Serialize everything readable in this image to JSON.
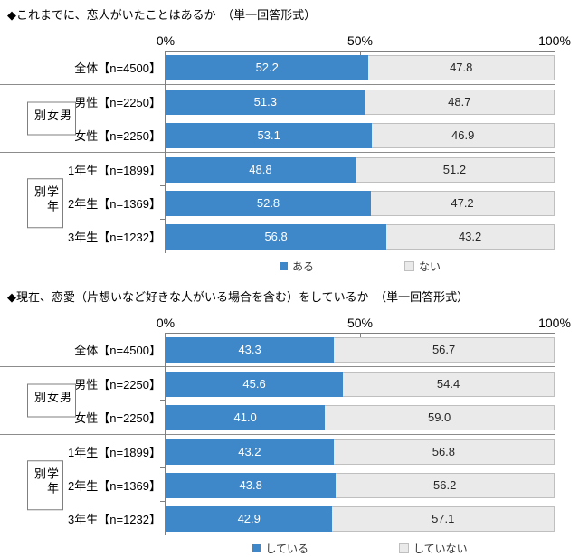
{
  "colors": {
    "bar_primary": "#3E87C8",
    "bar_secondary": "#EAEAEA",
    "bar_secondary_border": "#BFBFBF",
    "axis_line": "#7F7F7F",
    "group_separator": "#8C8C8C",
    "value_on_primary": "#FFFFFF",
    "value_on_secondary": "#262626",
    "background": "#FFFFFF"
  },
  "chart_data": [
    {
      "type": "bar",
      "stacked": true,
      "orientation": "horizontal",
      "title": "◆これまでに、恋人がいたことはあるか　（単一回答形式）",
      "categories": [
        "全体【n=4500】",
        "男性【n=2250】",
        "女性【n=2250】",
        "1年生【n=1899】",
        "2年生【n=1369】",
        "3年生【n=1232】"
      ],
      "series": [
        {
          "name": "ある",
          "values": [
            52.2,
            51.3,
            53.1,
            48.8,
            52.8,
            56.8
          ]
        },
        {
          "name": "ない",
          "values": [
            47.8,
            48.7,
            46.9,
            51.2,
            47.2,
            43.2
          ]
        }
      ],
      "groups": [
        {
          "label": "",
          "span": 1
        },
        {
          "label": "男女別",
          "span": 2
        },
        {
          "label": "学年別",
          "span": 3
        }
      ],
      "xlim": [
        0,
        100
      ],
      "x_ticks": [
        "0%",
        "50%",
        "100%"
      ],
      "grid": false,
      "legend_position": "bottom"
    },
    {
      "type": "bar",
      "stacked": true,
      "orientation": "horizontal",
      "title": "◆現在、恋愛（片想いなど好きな人がいる場合を含む）をしているか　（単一回答形式）",
      "categories": [
        "全体【n=4500】",
        "男性【n=2250】",
        "女性【n=2250】",
        "1年生【n=1899】",
        "2年生【n=1369】",
        "3年生【n=1232】"
      ],
      "series": [
        {
          "name": "している",
          "values": [
            43.3,
            45.6,
            41.0,
            43.2,
            43.8,
            42.9
          ]
        },
        {
          "name": "していない",
          "values": [
            56.7,
            54.4,
            59.0,
            56.8,
            56.2,
            57.1
          ]
        }
      ],
      "groups": [
        {
          "label": "",
          "span": 1
        },
        {
          "label": "男女別",
          "span": 2
        },
        {
          "label": "学年別",
          "span": 3
        }
      ],
      "xlim": [
        0,
        100
      ],
      "x_ticks": [
        "0%",
        "50%",
        "100%"
      ],
      "grid": false,
      "legend_position": "bottom"
    }
  ]
}
